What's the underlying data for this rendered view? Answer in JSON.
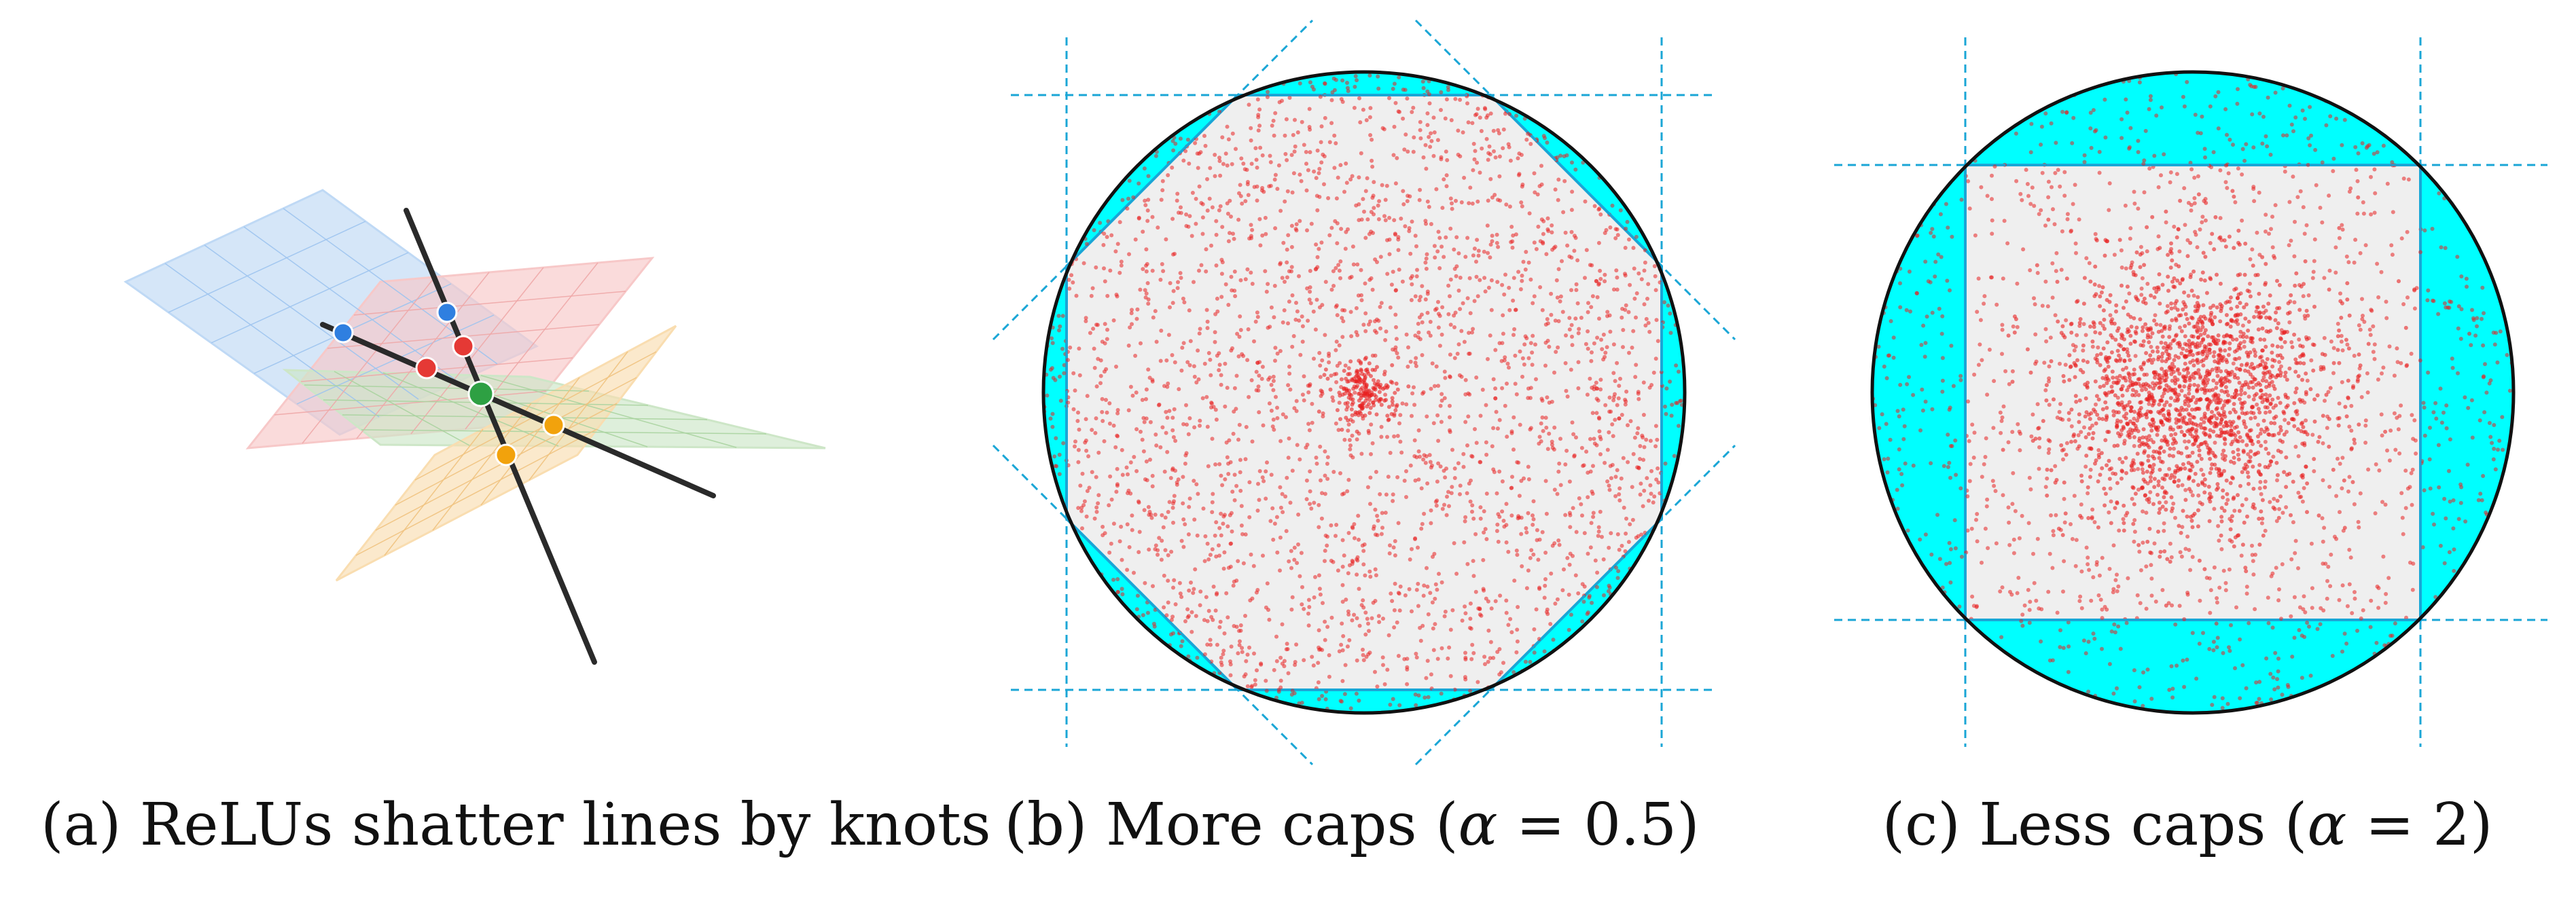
{
  "captions": {
    "a": "(a) ReLUs shatter lines by knots",
    "b_prefix": "(b) More caps (",
    "b_symbol": "α",
    "b_suffix": " = 0.5)",
    "c_prefix": "(c) Less caps (",
    "c_symbol": "α",
    "c_suffix": " = 2)"
  },
  "colors": {
    "cap_fill": "#00FFFF",
    "polytope_fill": "#EFEFEF",
    "dashed_line": "#1AA6D6",
    "points": "#E82020",
    "plane_blue": "#BFD9F5",
    "plane_red": "#F7C8C8",
    "plane_green": "#CDE6C7",
    "plane_orange": "#F9DDB0",
    "knot_blue": "#2F7FE0",
    "knot_red": "#E53935",
    "knot_green": "#2EA043",
    "knot_orange": "#F2A20C"
  },
  "panels": {
    "b": {
      "alpha": 0.5,
      "polygon_sides": 8
    },
    "c": {
      "alpha": 2,
      "polygon_sides": 4
    }
  }
}
